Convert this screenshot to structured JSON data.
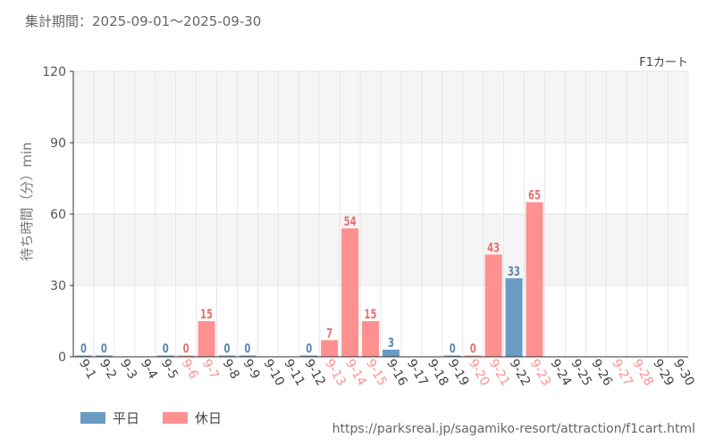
{
  "period_text": "集計期間：2025-09-01～2025-09-30",
  "source_url": "https://parksreal.jp/sagamiko-resort/attraction/f1cart.html",
  "colors": {
    "weekday": "#6a9bc3",
    "holiday": "#ff9090",
    "weekday_label": "#5a87b0",
    "holiday_label": "#e87070"
  },
  "chart_data": {
    "type": "bar",
    "attraction_label": "F1カート",
    "ylabel": "待ち時間（分）min",
    "ylim": [
      0,
      120
    ],
    "yticks": [
      0,
      30,
      60,
      90,
      120
    ],
    "grid": true,
    "legend_position": "bottom-left",
    "categories": [
      "9-1",
      "9-2",
      "9-3",
      "9-4",
      "9-5",
      "9-6",
      "9-7",
      "9-8",
      "9-9",
      "9-10",
      "9-11",
      "9-12",
      "9-13",
      "9-14",
      "9-15",
      "9-16",
      "9-17",
      "9-18",
      "9-19",
      "9-20",
      "9-21",
      "9-22",
      "9-23",
      "9-24",
      "9-25",
      "9-26",
      "9-27",
      "9-28",
      "9-29",
      "9-30"
    ],
    "day_type": [
      "weekday",
      "weekday",
      "weekday",
      "weekday",
      "weekday",
      "holiday",
      "holiday",
      "weekday",
      "weekday",
      "weekday",
      "weekday",
      "weekday",
      "holiday",
      "holiday",
      "holiday",
      "weekday",
      "weekday",
      "weekday",
      "weekday",
      "holiday",
      "holiday",
      "weekday",
      "holiday",
      "weekday",
      "weekday",
      "weekday",
      "holiday",
      "holiday",
      "weekday",
      "weekday"
    ],
    "values": [
      0,
      0,
      null,
      null,
      0,
      0,
      15,
      0,
      0,
      null,
      null,
      0,
      7,
      54,
      15,
      3,
      null,
      null,
      0,
      0,
      43,
      33,
      65,
      null,
      null,
      null,
      null,
      null,
      null,
      null
    ],
    "series": [
      {
        "name": "平日",
        "type": "weekday"
      },
      {
        "name": "休日",
        "type": "holiday"
      }
    ]
  }
}
